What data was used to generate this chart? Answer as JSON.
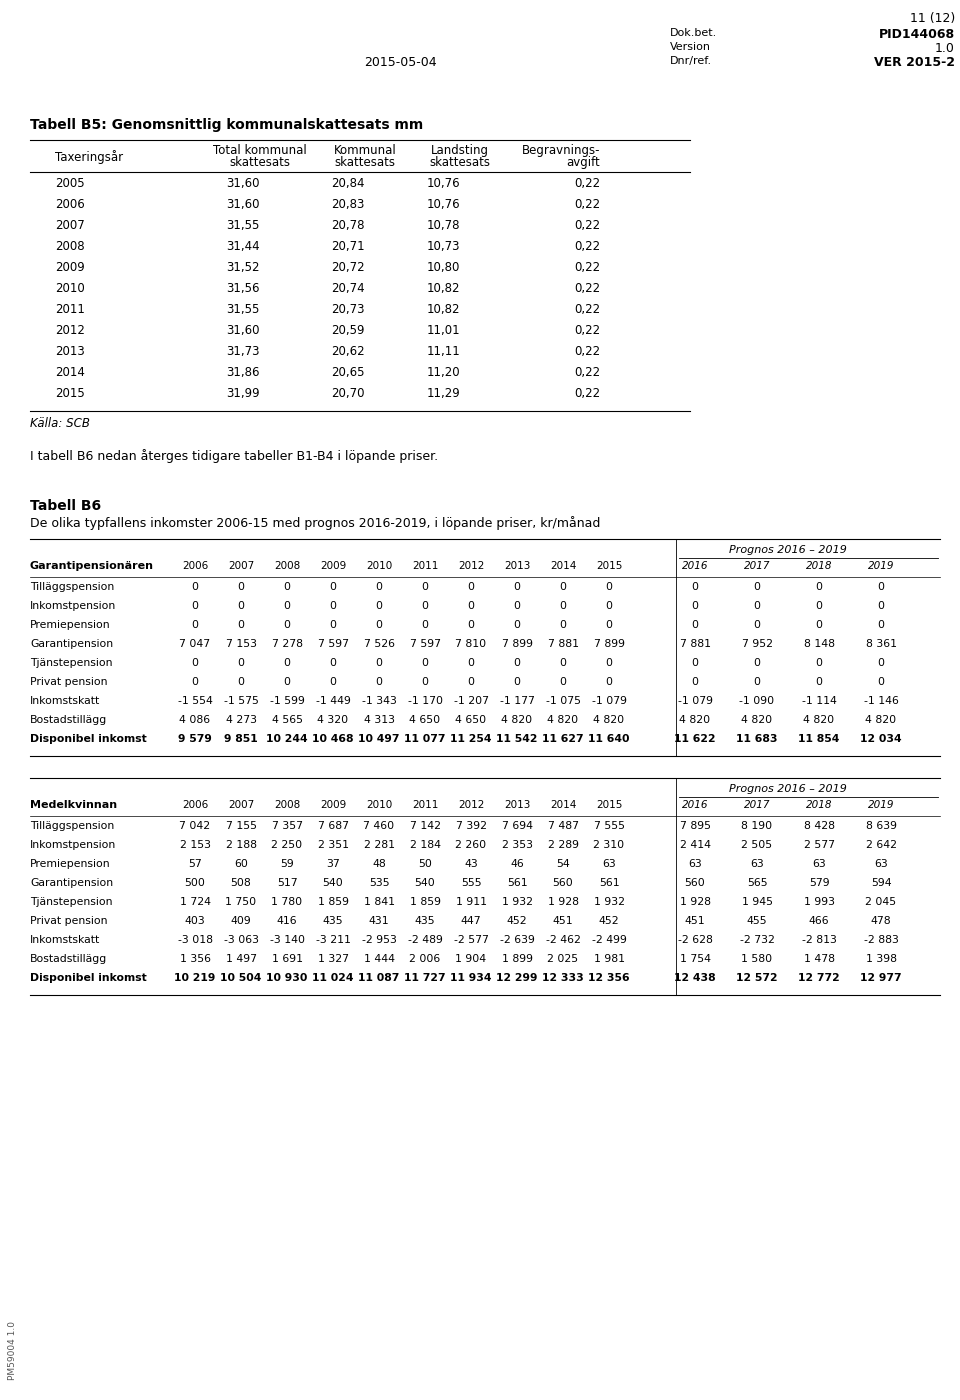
{
  "page_num": "11 (12)",
  "dok_bet_label": "Dok.bet.",
  "dok_bet_val": "PID144068",
  "version_label": "Version",
  "version_val": "1.0",
  "dnr_label": "Dnr/ref.",
  "dnr_val": "VER 2015-2",
  "date": "2015-05-04",
  "footer_left": "PM59004 1.0",
  "tabell_b5_title": "Tabell B5: Genomsnittlig kommunalskattesats mm",
  "b5_col_headers": [
    "Taxeringsår",
    "Total kommunal\nskattesats",
    "Kommunal\nskattesats",
    "Landsting\nskattesats",
    "Begravnings-\navgift"
  ],
  "b5_rows": [
    [
      "2005",
      "31,60",
      "20,84",
      "10,76",
      "0,22"
    ],
    [
      "2006",
      "31,60",
      "20,83",
      "10,76",
      "0,22"
    ],
    [
      "2007",
      "31,55",
      "20,78",
      "10,78",
      "0,22"
    ],
    [
      "2008",
      "31,44",
      "20,71",
      "10,73",
      "0,22"
    ],
    [
      "2009",
      "31,52",
      "20,72",
      "10,80",
      "0,22"
    ],
    [
      "2010",
      "31,56",
      "20,74",
      "10,82",
      "0,22"
    ],
    [
      "2011",
      "31,55",
      "20,73",
      "10,82",
      "0,22"
    ],
    [
      "2012",
      "31,60",
      "20,59",
      "11,01",
      "0,22"
    ],
    [
      "2013",
      "31,73",
      "20,62",
      "11,11",
      "0,22"
    ],
    [
      "2014",
      "31,86",
      "20,65",
      "11,20",
      "0,22"
    ],
    [
      "2015",
      "31,99",
      "20,70",
      "11,29",
      "0,22"
    ]
  ],
  "kalla": "Källa: SCB",
  "b6_note": "I tabell B6 nedan återges tidigare tabeller B1-B4 i löpande priser.",
  "tabell_b6_title1": "Tabell B6",
  "tabell_b6_title2": "De olika typfallens inkomster 2006-15 med prognos 2016-2019, i löpande priser, kr/månad",
  "b6_section1_label": "Garantipensionären",
  "b6_years": [
    "2006",
    "2007",
    "2008",
    "2009",
    "2010",
    "2011",
    "2012",
    "2013",
    "2014",
    "2015"
  ],
  "b6_prognos_years": [
    "2016",
    "2017",
    "2018",
    "2019"
  ],
  "b6_prognos_label": "Prognos 2016 – 2019",
  "b6_rows1": [
    [
      "Tilläggspension",
      "0",
      "0",
      "0",
      "0",
      "0",
      "0",
      "0",
      "0",
      "0",
      "0",
      "0",
      "0",
      "0",
      "0"
    ],
    [
      "Inkomstpension",
      "0",
      "0",
      "0",
      "0",
      "0",
      "0",
      "0",
      "0",
      "0",
      "0",
      "0",
      "0",
      "0",
      "0"
    ],
    [
      "Premiepension",
      "0",
      "0",
      "0",
      "0",
      "0",
      "0",
      "0",
      "0",
      "0",
      "0",
      "0",
      "0",
      "0",
      "0"
    ],
    [
      "Garantipension",
      "7 047",
      "7 153",
      "7 278",
      "7 597",
      "7 526",
      "7 597",
      "7 810",
      "7 899",
      "7 881",
      "7 899",
      "7 881",
      "7 952",
      "8 148",
      "8 361"
    ],
    [
      "Tjänstepension",
      "0",
      "0",
      "0",
      "0",
      "0",
      "0",
      "0",
      "0",
      "0",
      "0",
      "0",
      "0",
      "0",
      "0"
    ],
    [
      "Privat pension",
      "0",
      "0",
      "0",
      "0",
      "0",
      "0",
      "0",
      "0",
      "0",
      "0",
      "0",
      "0",
      "0",
      "0"
    ],
    [
      "Inkomstskatt",
      "-1 554",
      "-1 575",
      "-1 599",
      "-1 449",
      "-1 343",
      "-1 170",
      "-1 207",
      "-1 177",
      "-1 075",
      "-1 079",
      "-1 079",
      "-1 090",
      "-1 114",
      "-1 146"
    ],
    [
      "Bostadstillägg",
      "4 086",
      "4 273",
      "4 565",
      "4 320",
      "4 313",
      "4 650",
      "4 650",
      "4 820",
      "4 820",
      "4 820",
      "4 820",
      "4 820",
      "4 820",
      "4 820"
    ],
    [
      "Disponibel inkomst",
      "9 579",
      "9 851",
      "10 244",
      "10 468",
      "10 497",
      "11 077",
      "11 254",
      "11 542",
      "11 627",
      "11 640",
      "11 622",
      "11 683",
      "11 854",
      "12 034"
    ]
  ],
  "b6_section2_label": "Medelkvinnan",
  "b6_rows2": [
    [
      "Tilläggspension",
      "7 042",
      "7 155",
      "7 357",
      "7 687",
      "7 460",
      "7 142",
      "7 392",
      "7 694",
      "7 487",
      "7 555",
      "7 895",
      "8 190",
      "8 428",
      "8 639"
    ],
    [
      "Inkomstpension",
      "2 153",
      "2 188",
      "2 250",
      "2 351",
      "2 281",
      "2 184",
      "2 260",
      "2 353",
      "2 289",
      "2 310",
      "2 414",
      "2 505",
      "2 577",
      "2 642"
    ],
    [
      "Premiepension",
      "57",
      "60",
      "59",
      "37",
      "48",
      "50",
      "43",
      "46",
      "54",
      "63",
      "63",
      "63",
      "63",
      "63"
    ],
    [
      "Garantipension",
      "500",
      "508",
      "517",
      "540",
      "535",
      "540",
      "555",
      "561",
      "560",
      "561",
      "560",
      "565",
      "579",
      "594"
    ],
    [
      "Tjänstepension",
      "1 724",
      "1 750",
      "1 780",
      "1 859",
      "1 841",
      "1 859",
      "1 911",
      "1 932",
      "1 928",
      "1 932",
      "1 928",
      "1 945",
      "1 993",
      "2 045"
    ],
    [
      "Privat pension",
      "403",
      "409",
      "416",
      "435",
      "431",
      "435",
      "447",
      "452",
      "451",
      "452",
      "451",
      "455",
      "466",
      "478"
    ],
    [
      "Inkomstskatt",
      "-3 018",
      "-3 063",
      "-3 140",
      "-3 211",
      "-2 953",
      "-2 489",
      "-2 577",
      "-2 639",
      "-2 462",
      "-2 499",
      "-2 628",
      "-2 732",
      "-2 813",
      "-2 883"
    ],
    [
      "Bostadstillägg",
      "1 356",
      "1 497",
      "1 691",
      "1 327",
      "1 444",
      "2 006",
      "1 904",
      "1 899",
      "2 025",
      "1 981",
      "1 754",
      "1 580",
      "1 478",
      "1 398"
    ],
    [
      "Disponibel inkomst",
      "10 219",
      "10 504",
      "10 930",
      "11 024",
      "11 087",
      "11 727",
      "11 934",
      "12 299",
      "12 333",
      "12 356",
      "12 438",
      "12 572",
      "12 772",
      "12 977"
    ]
  ]
}
